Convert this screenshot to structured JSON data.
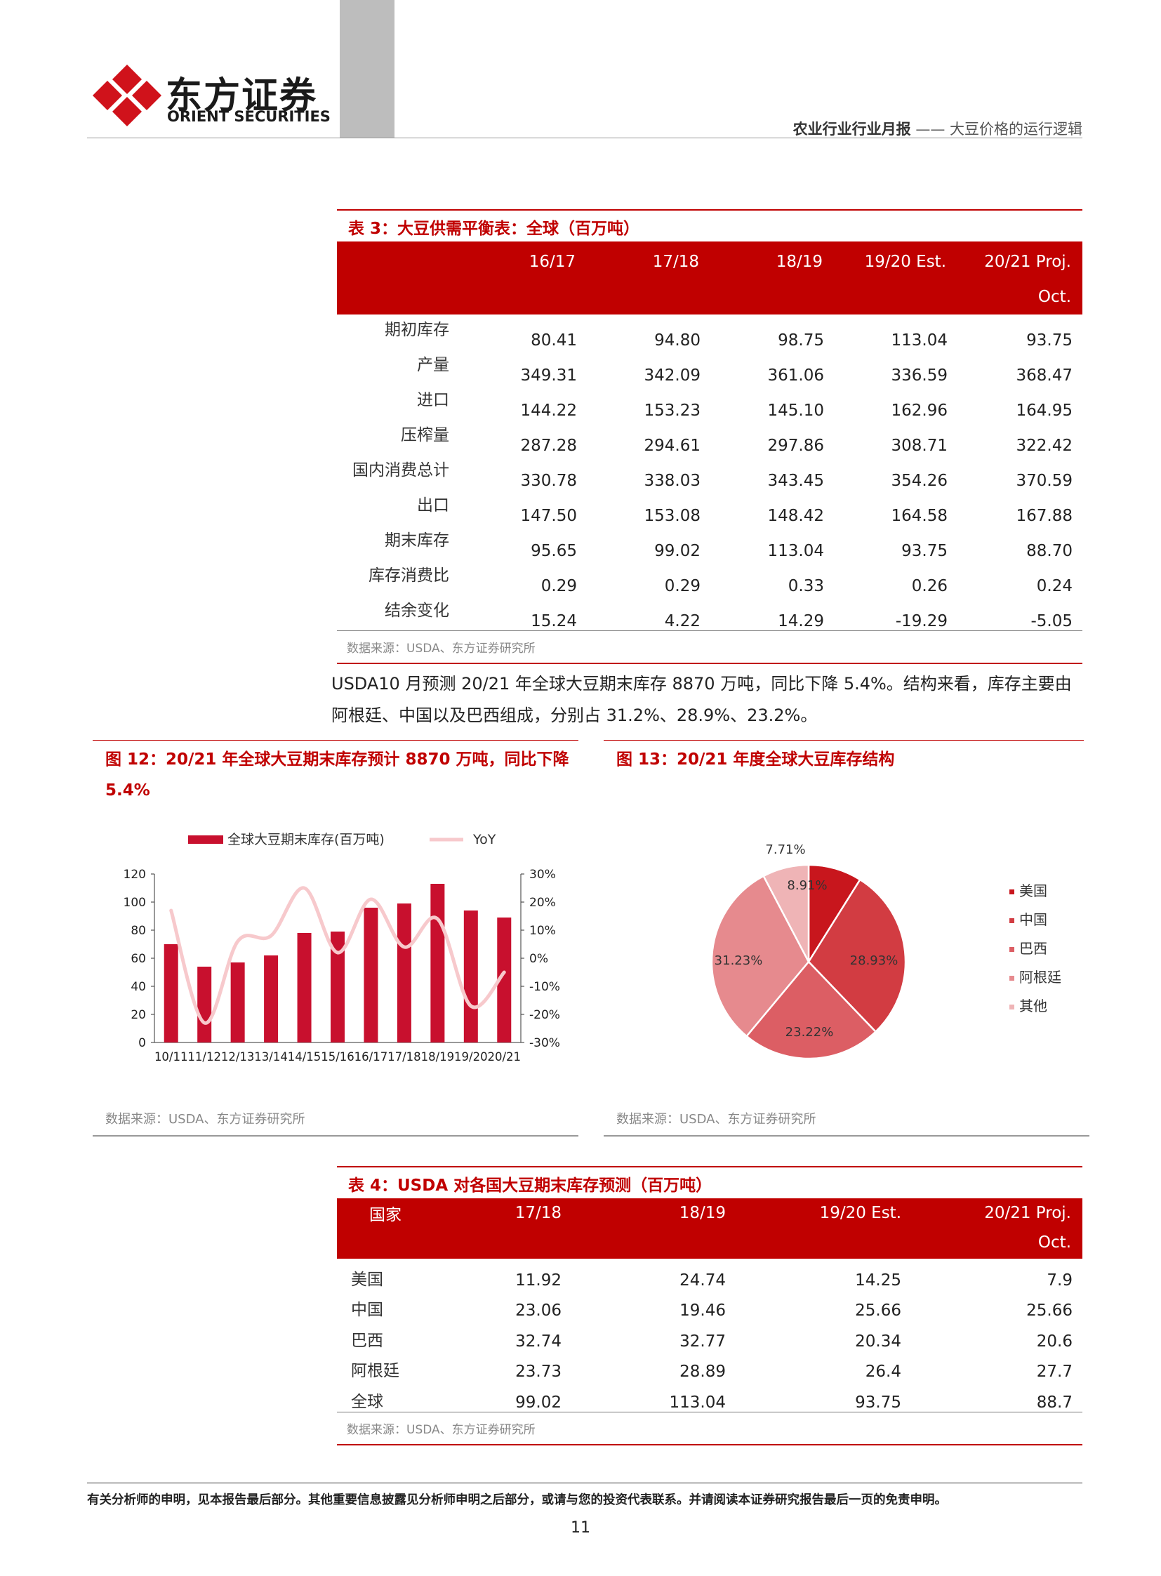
{
  "header": {
    "brand_cn": "东方证券",
    "brand_en": "ORIENT SECURITIES",
    "report_type": "农业行业行业月报",
    "report_title": "—— 大豆价格的运行逻辑"
  },
  "table3": {
    "title": "表 3：大豆供需平衡表：全球（百万吨）",
    "headers": [
      "16/17",
      "17/18",
      "18/19",
      "19/20 Est.",
      "20/21 Proj."
    ],
    "header_sub": "Oct.",
    "rows": [
      {
        "label": "期初库存",
        "values": [
          "80.41",
          "94.80",
          "98.75",
          "113.04",
          "93.75"
        ]
      },
      {
        "label": "产量",
        "values": [
          "349.31",
          "342.09",
          "361.06",
          "336.59",
          "368.47"
        ]
      },
      {
        "label": "进口",
        "values": [
          "144.22",
          "153.23",
          "145.10",
          "162.96",
          "164.95"
        ]
      },
      {
        "label": "压榨量",
        "values": [
          "287.28",
          "294.61",
          "297.86",
          "308.71",
          "322.42"
        ]
      },
      {
        "label": "国内消费总计",
        "values": [
          "330.78",
          "338.03",
          "343.45",
          "354.26",
          "370.59"
        ]
      },
      {
        "label": "出口",
        "values": [
          "147.50",
          "153.08",
          "148.42",
          "164.58",
          "167.88"
        ]
      },
      {
        "label": "期末库存",
        "values": [
          "95.65",
          "99.02",
          "113.04",
          "93.75",
          "88.70"
        ]
      },
      {
        "label": "库存消费比",
        "values": [
          "0.29",
          "0.29",
          "0.33",
          "0.26",
          "0.24"
        ]
      },
      {
        "label": "结余变化",
        "values": [
          "15.24",
          "4.22",
          "14.29",
          "-19.29",
          "-5.05"
        ]
      }
    ],
    "source": "数据来源：USDA、东方证券研究所"
  },
  "paragraph": "USDA10 月预测 20/21 年全球大豆期末库存 8870 万吨，同比下降 5.4%。结构来看，库存主要由阿根廷、中国以及巴西组成，分别占 31.2%、28.9%、23.2%。",
  "figure12": {
    "title": "图 12：20/21 年全球大豆期末库存预计 8870 万吨，同比下降 5.4%",
    "source": "数据来源：USDA、东方证券研究所"
  },
  "figure13": {
    "title": "图 13：20/21 年度全球大豆库存结构",
    "source": "数据来源：USDA、东方证券研究所"
  },
  "chart_data": [
    {
      "type": "bar",
      "categories": [
        "10/11",
        "11/12",
        "12/13",
        "13/14",
        "14/15",
        "15/16",
        "16/17",
        "17/18",
        "18/19",
        "19/20",
        "20/21"
      ],
      "series": [
        {
          "name": "全球大豆期末库存(百万吨)",
          "type": "bar",
          "axis": "left",
          "color": "#c8102e",
          "values": [
            70,
            54,
            57,
            62,
            78,
            79,
            96,
            99,
            113,
            94,
            89
          ]
        },
        {
          "name": "YoY",
          "type": "line",
          "axis": "right",
          "color": "#f7c9cc",
          "values": [
            17,
            -23,
            6,
            8,
            25,
            2,
            21,
            4,
            14,
            -17,
            -5
          ]
        }
      ],
      "ylim_left": [
        0,
        120
      ],
      "ylim_right": [
        -30,
        30
      ],
      "yticks_left": [
        "0",
        "20",
        "40",
        "60",
        "80",
        "100",
        "120"
      ],
      "yticks_right": [
        "-30%",
        "-20%",
        "-10%",
        "0%",
        "10%",
        "20%",
        "30%"
      ],
      "legend_position": "top",
      "grid": false
    },
    {
      "type": "pie",
      "labels": [
        "美国",
        "中国",
        "巴西",
        "阿根廷",
        "其他"
      ],
      "values": [
        8.91,
        28.93,
        23.22,
        31.23,
        7.71
      ],
      "value_labels": [
        "8.91%",
        "28.93%",
        "23.22%",
        "31.23%",
        "7.71%"
      ],
      "colors": [
        "#c8161d",
        "#d23c42",
        "#dc5e64",
        "#e68a8e",
        "#efb4b6"
      ],
      "legend_position": "right"
    }
  ],
  "table4": {
    "title": "表 4：USDA 对各国大豆期末库存预测（百万吨）",
    "country_header": "国家",
    "headers": [
      "17/18",
      "18/19",
      "19/20 Est.",
      "20/21 Proj."
    ],
    "header_sub": "Oct.",
    "rows": [
      {
        "label": "美国",
        "values": [
          "11.92",
          "24.74",
          "14.25",
          "7.9"
        ]
      },
      {
        "label": "中国",
        "values": [
          "23.06",
          "19.46",
          "25.66",
          "25.66"
        ]
      },
      {
        "label": "巴西",
        "values": [
          "32.74",
          "32.77",
          "20.34",
          "20.6"
        ]
      },
      {
        "label": "阿根廷",
        "values": [
          "23.73",
          "28.89",
          "26.4",
          "27.7"
        ]
      },
      {
        "label": "全球",
        "values": [
          "99.02",
          "113.04",
          "93.75",
          "88.7"
        ]
      }
    ],
    "source": "数据来源：USDA、东方证券研究所"
  },
  "footer": {
    "disclaimer": "有关分析师的申明，见本报告最后部分。其他重要信息披露见分析师申明之后部分，或请与您的投资代表联系。并请阅读本证券研究报告最后一页的免责申明。",
    "page_number": "11"
  }
}
